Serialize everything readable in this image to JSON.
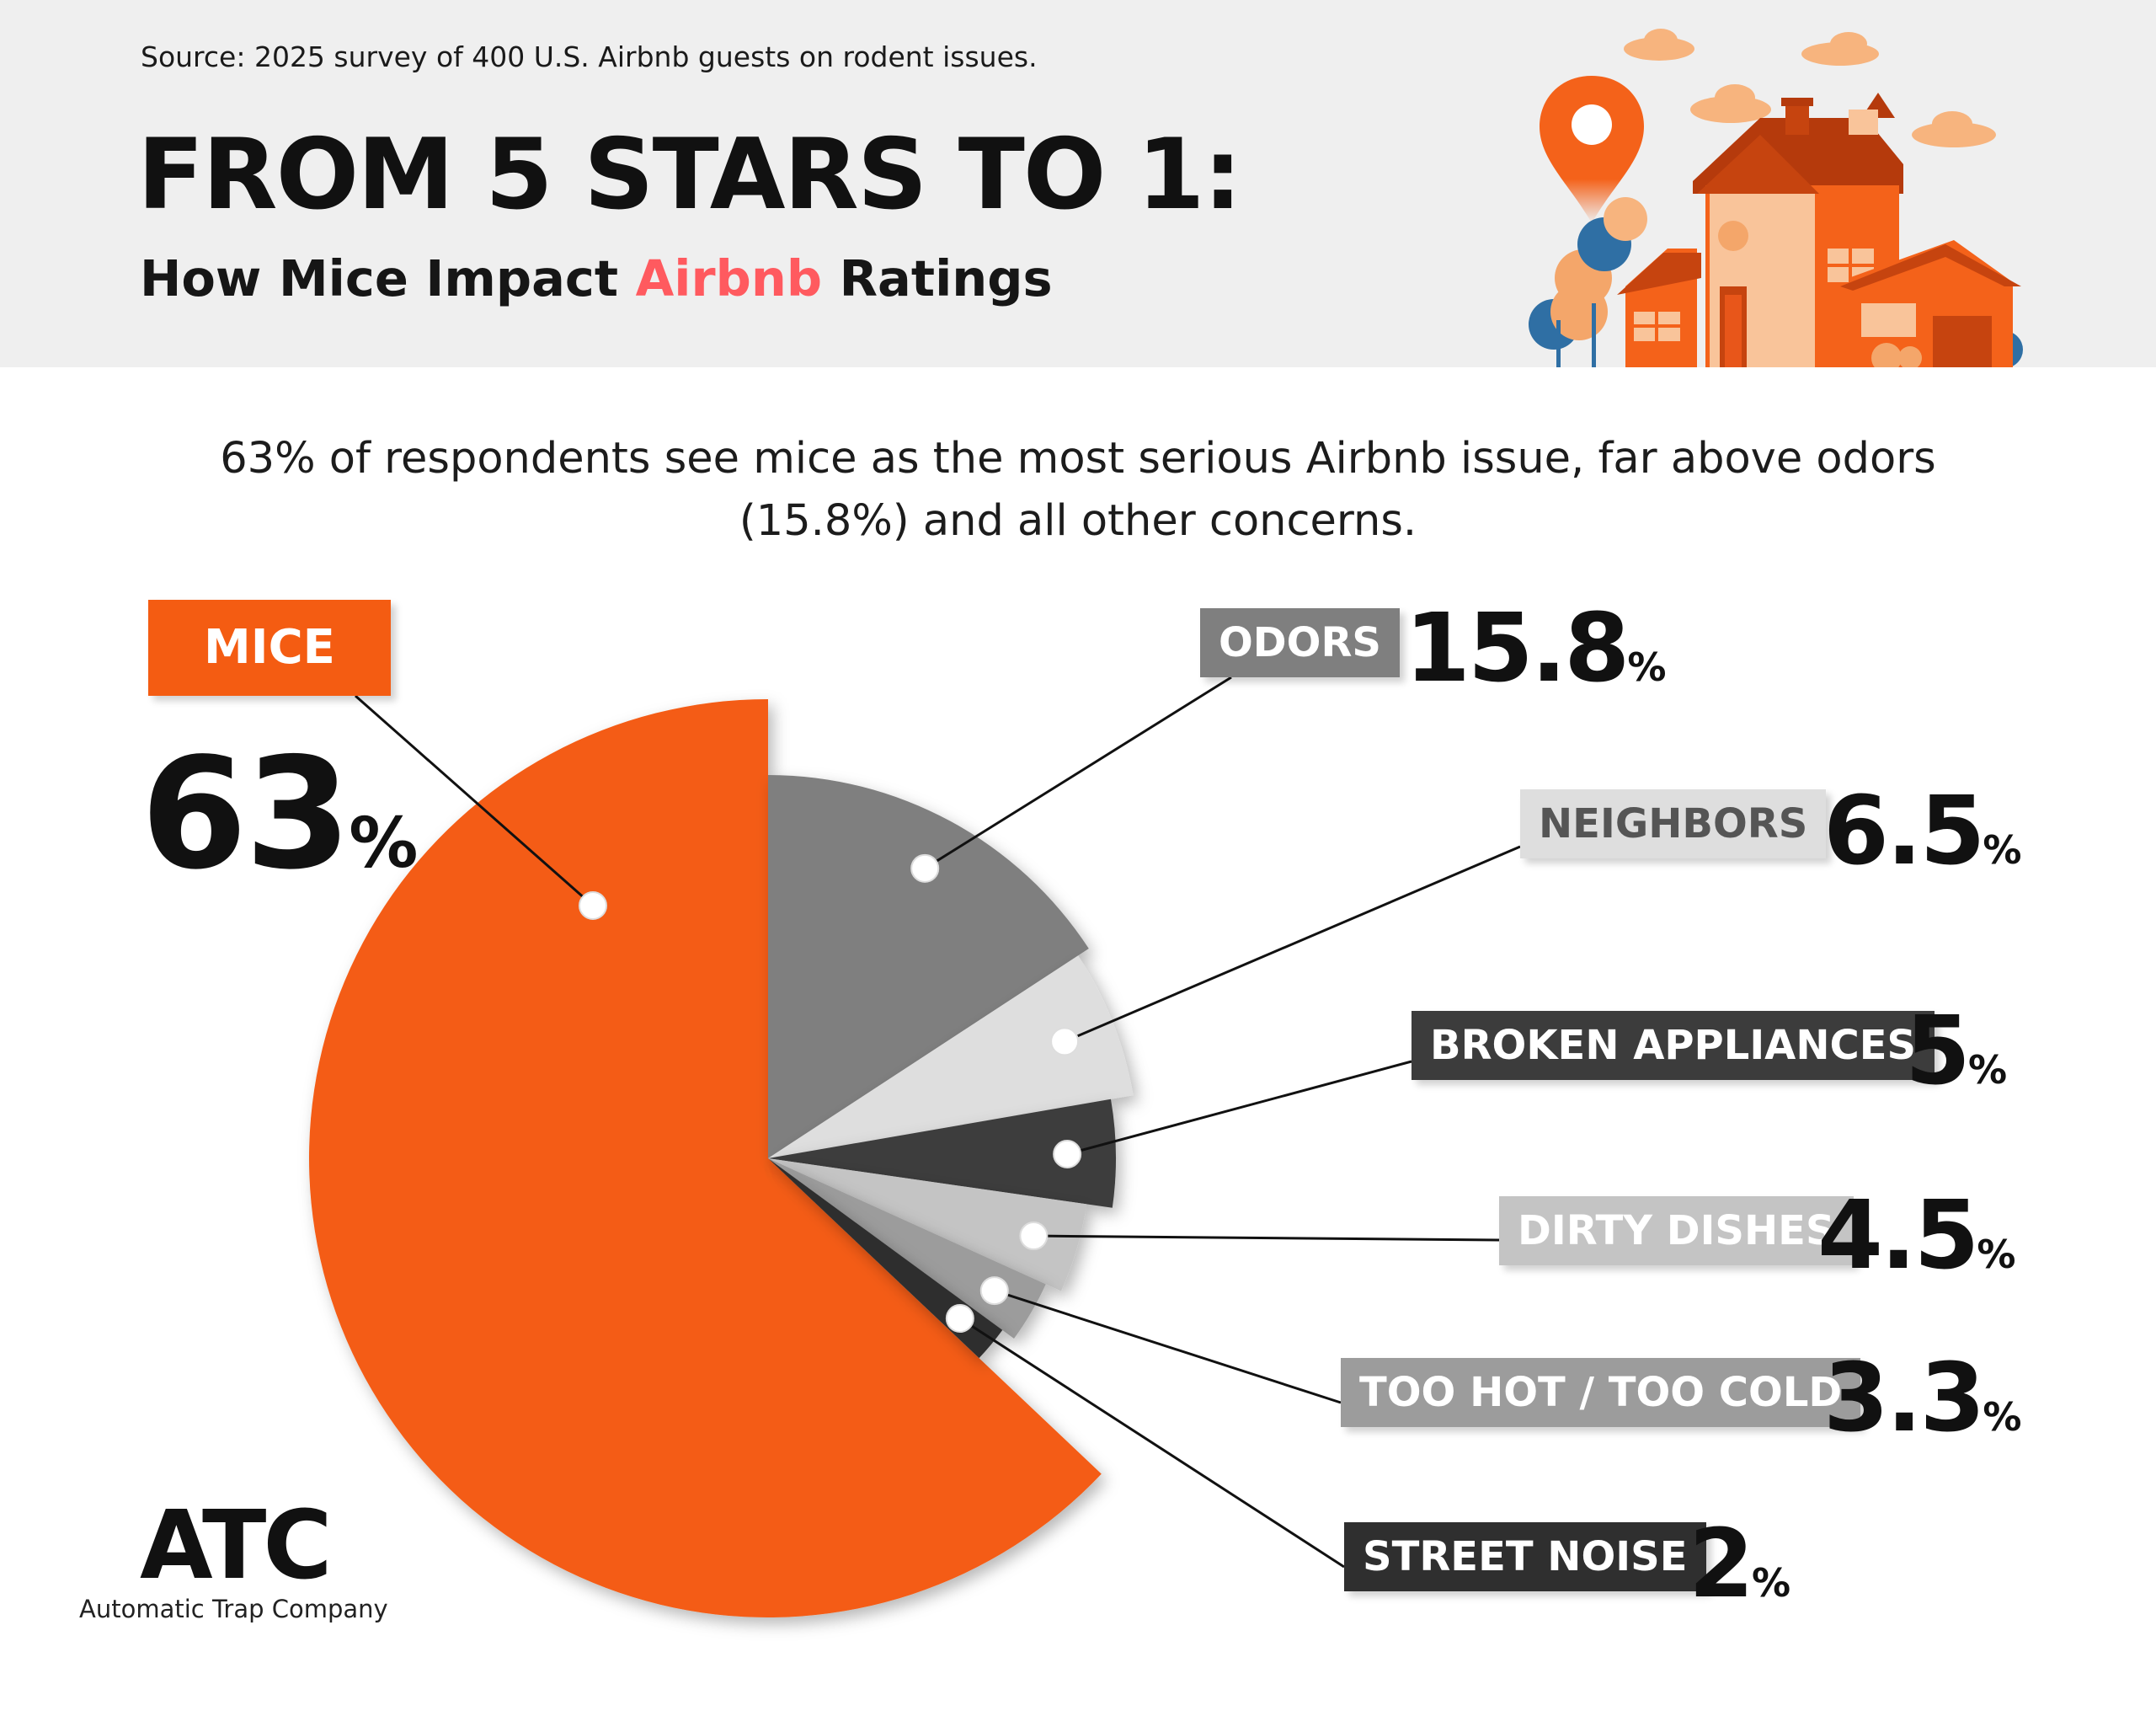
{
  "header": {
    "source": "Source: 2025 survey of 400 U.S. Airbnb guests on rodent issues.",
    "title": "FROM 5 STARS TO 1:",
    "subtitle_prefix": "How Mice Impact ",
    "subtitle_brand": "Airbnb",
    "subtitle_suffix": " Ratings"
  },
  "summary": "63% of respondents see mice as the most serious Airbnb issue, far above odors (15.8%) and all other concerns.",
  "chart_data": {
    "type": "pie",
    "title": "How Mice Impact Airbnb Ratings",
    "unit": "%",
    "slices": [
      {
        "label": "MICE",
        "value": 63,
        "value_text": "63",
        "color": "#f45c12",
        "label_color": "#ffffff"
      },
      {
        "label": "ODORS",
        "value": 15.8,
        "value_text": "15.8",
        "color": "#7f7f7f",
        "label_color": "#ffffff"
      },
      {
        "label": "NEIGHBORS",
        "value": 6.5,
        "value_text": "6.5",
        "color": "#dedede",
        "label_color": "#555555"
      },
      {
        "label": "BROKEN APPLIANCES",
        "value": 5,
        "value_text": "5",
        "color": "#3c3c3c",
        "label_color": "#ffffff"
      },
      {
        "label": "DIRTY DISHES",
        "value": 4.5,
        "value_text": "4.5",
        "color": "#c4c4c4",
        "label_color": "#ffffff"
      },
      {
        "label": "TOO HOT / TOO COLD",
        "value": 3.3,
        "value_text": "3.3",
        "color": "#9c9c9c",
        "label_color": "#ffffff"
      },
      {
        "label": "STREET NOISE",
        "value": 2,
        "value_text": "2",
        "color": "#2f2f2f",
        "label_color": "#ffffff"
      }
    ]
  },
  "brand": {
    "logo": "ATC",
    "name": "Automatic Trap Company"
  }
}
